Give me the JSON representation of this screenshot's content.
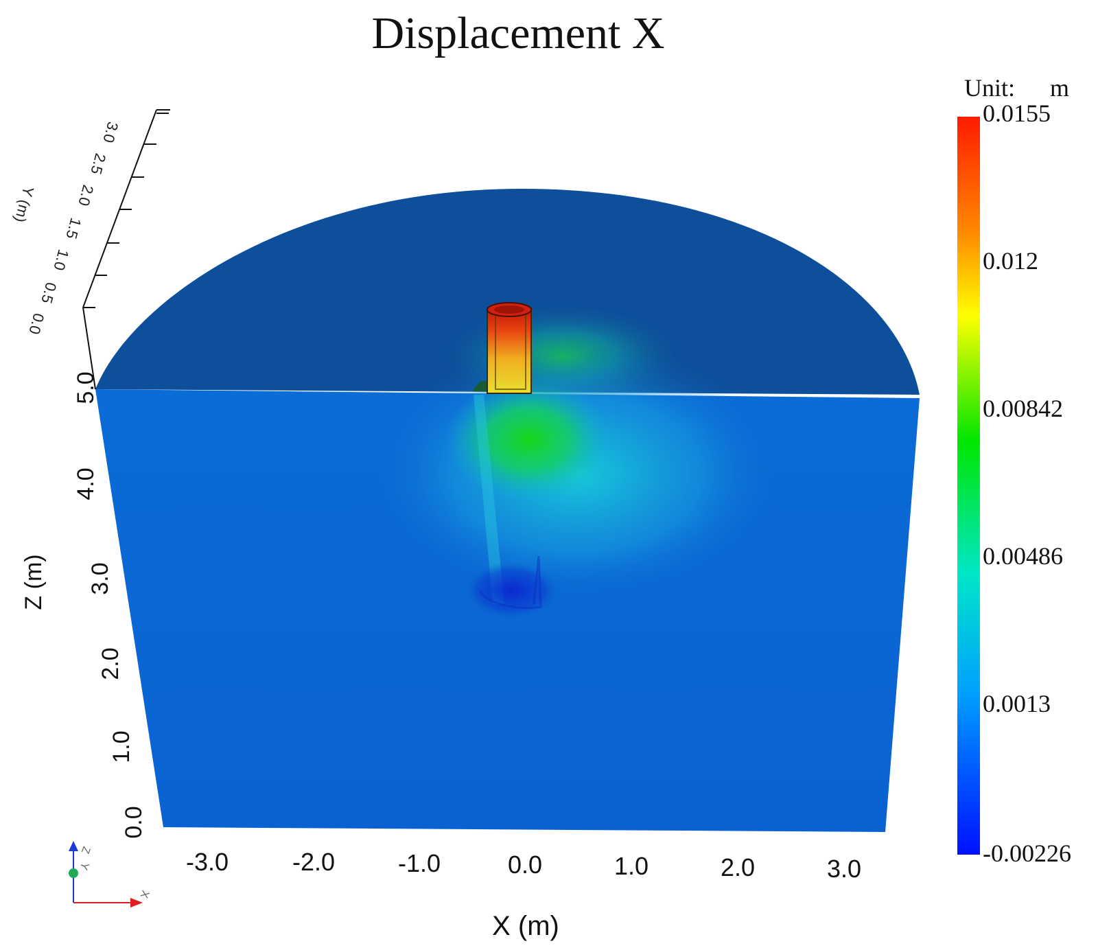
{
  "title": "Displacement X",
  "colorbar": {
    "unit_label": "Unit:",
    "unit_value": "m",
    "ticks": [
      "0.0155",
      "0.012",
      "0.00842",
      "0.00486",
      "0.0013",
      "-0.00226"
    ],
    "colors": [
      "#ff1a00",
      "#ff8c00",
      "#ffff00",
      "#00e600",
      "#00e6c8",
      "#00a0ff",
      "#0010ff"
    ]
  },
  "x_axis": {
    "label": "X (m)",
    "ticks": [
      "-3.0",
      "-2.0",
      "-1.0",
      "0.0",
      "1.0",
      "2.0",
      "3.0"
    ]
  },
  "z_axis": {
    "label": "Z (m)",
    "ticks": [
      "5.0",
      "4.0",
      "3.0",
      "2.0",
      "1.0",
      "0.0"
    ]
  },
  "y_axis": {
    "label": "Y (m)",
    "ticks": [
      "3.0",
      "2.5",
      "2.0",
      "1.5",
      "1.0",
      "0.5",
      "0.0"
    ]
  },
  "orientation_widget": {
    "labels": [
      "Z",
      "Y",
      "X"
    ],
    "colors": {
      "z": "#1a3bd6",
      "y": "#22aa55",
      "x": "#e02020"
    }
  },
  "field_colors": {
    "top_surface": "#0d4f9a",
    "front_face": "#0a66d2",
    "pile_top": "#e83010",
    "pile_mid": "#f0d020",
    "green_zone": "#10d010",
    "cyan_zone": "#18c8d8",
    "low_zone": "#0a30d0"
  }
}
